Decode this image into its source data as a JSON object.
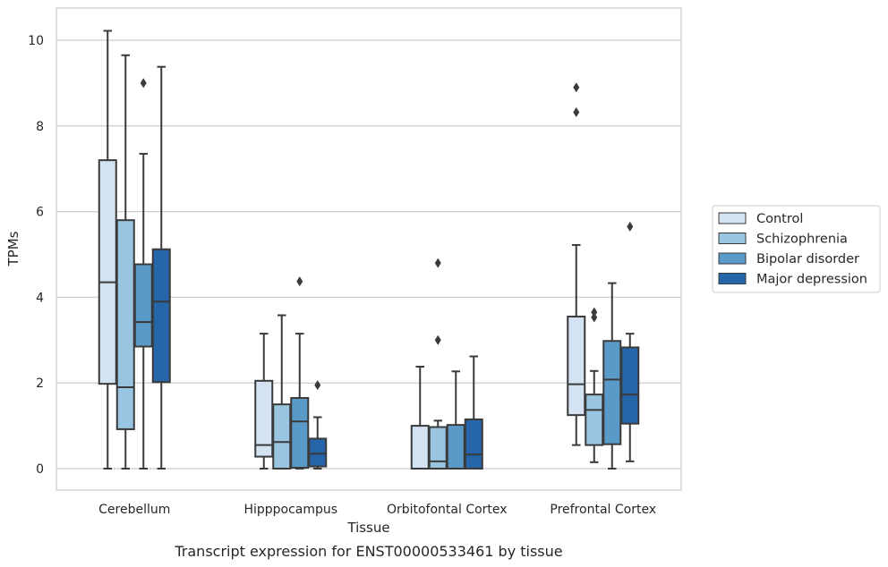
{
  "chart_data": {
    "type": "box",
    "title": "",
    "caption": "Transcript expression for ENST00000533461 by tissue",
    "xlabel": "Tissue",
    "ylabel": "TPMs",
    "ylim": [
      -0.45,
      10.75
    ],
    "yticks": [
      0,
      2,
      4,
      6,
      8,
      10
    ],
    "grid": "horizontal",
    "legend_position": "right",
    "categories": [
      "Cerebellum",
      "Hipppocampus",
      "Orbitofontal Cortex",
      "Prefrontal Cortex"
    ],
    "series": [
      {
        "name": "Control",
        "color": "#d4e3f2",
        "boxes": [
          {
            "whisker_low": 0,
            "q1": 1.98,
            "median": 4.35,
            "q3": 7.2,
            "whisker_high": 10.22,
            "outliers": []
          },
          {
            "whisker_low": 0,
            "q1": 0.28,
            "median": 0.55,
            "q3": 2.05,
            "whisker_high": 3.15,
            "outliers": []
          },
          {
            "whisker_low": 0,
            "q1": 0,
            "median": 0,
            "q3": 1.0,
            "whisker_high": 2.38,
            "outliers": []
          },
          {
            "whisker_low": 0.55,
            "q1": 1.25,
            "median": 1.97,
            "q3": 3.55,
            "whisker_high": 5.22,
            "outliers": [
              8.32,
              8.9
            ]
          }
        ]
      },
      {
        "name": "Schizophrenia",
        "color": "#9ac5e0",
        "boxes": [
          {
            "whisker_low": 0,
            "q1": 0.92,
            "median": 1.9,
            "q3": 5.8,
            "whisker_high": 9.65,
            "outliers": []
          },
          {
            "whisker_low": 0,
            "q1": 0,
            "median": 0.62,
            "q3": 1.5,
            "whisker_high": 3.58,
            "outliers": []
          },
          {
            "whisker_low": 0,
            "q1": 0,
            "median": 0.17,
            "q3": 0.97,
            "whisker_high": 1.12,
            "outliers": [
              3.0,
              4.8
            ]
          },
          {
            "whisker_low": 0.15,
            "q1": 0.55,
            "median": 1.37,
            "q3": 1.73,
            "whisker_high": 2.28,
            "outliers": [
              3.53,
              3.65
            ]
          }
        ]
      },
      {
        "name": "Bipolar disorder",
        "color": "#5a9ac9",
        "boxes": [
          {
            "whisker_low": 0,
            "q1": 2.85,
            "median": 3.42,
            "q3": 4.77,
            "whisker_high": 7.35,
            "outliers": [
              9.0
            ]
          },
          {
            "whisker_low": 0,
            "q1": 0.02,
            "median": 1.1,
            "q3": 1.65,
            "whisker_high": 3.15,
            "outliers": [
              4.37
            ]
          },
          {
            "whisker_low": 0,
            "q1": 0,
            "median": 0,
            "q3": 1.02,
            "whisker_high": 2.27,
            "outliers": []
          },
          {
            "whisker_low": 0,
            "q1": 0.57,
            "median": 2.08,
            "q3": 2.98,
            "whisker_high": 4.33,
            "outliers": []
          }
        ]
      },
      {
        "name": "Major depression",
        "color": "#2565a8",
        "boxes": [
          {
            "whisker_low": 0,
            "q1": 2.02,
            "median": 3.9,
            "q3": 5.12,
            "whisker_high": 9.38,
            "outliers": []
          },
          {
            "whisker_low": 0,
            "q1": 0.05,
            "median": 0.35,
            "q3": 0.7,
            "whisker_high": 1.2,
            "outliers": [
              1.95
            ]
          },
          {
            "whisker_low": 0,
            "q1": 0,
            "median": 0.33,
            "q3": 1.15,
            "whisker_high": 2.62,
            "outliers": []
          },
          {
            "whisker_low": 0.17,
            "q1": 1.05,
            "median": 1.73,
            "q3": 2.83,
            "whisker_high": 3.15,
            "outliers": [
              5.65
            ]
          }
        ]
      }
    ]
  }
}
